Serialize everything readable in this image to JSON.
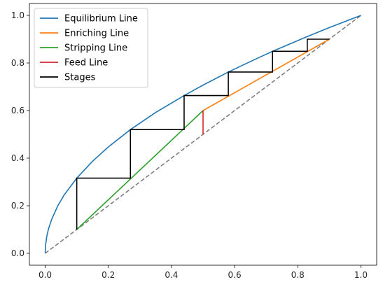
{
  "chart_data": {
    "type": "line",
    "xlim": [
      -0.05,
      1.05
    ],
    "ylim": [
      -0.05,
      1.05
    ],
    "xticks": [
      "0.0",
      "0.2",
      "0.4",
      "0.6",
      "0.8",
      "1.0"
    ],
    "yticks": [
      "0.0",
      "0.2",
      "0.4",
      "0.6",
      "0.8",
      "1.0"
    ],
    "grid": false,
    "legend_position": "top-left",
    "series": [
      {
        "name": "Equilibrium Line",
        "color": "#1f77b4",
        "x": [
          0,
          0.001,
          0.005,
          0.01,
          0.02,
          0.04,
          0.06,
          0.1,
          0.15,
          0.2,
          0.27,
          0.35,
          0.44,
          0.5,
          0.58,
          0.65,
          0.72,
          0.8,
          0.83,
          0.9,
          1.0
        ],
        "y": [
          0,
          0.032,
          0.071,
          0.1,
          0.141,
          0.2,
          0.245,
          0.316,
          0.387,
          0.447,
          0.52,
          0.592,
          0.663,
          0.707,
          0.762,
          0.806,
          0.849,
          0.894,
          0.911,
          0.949,
          1.0
        ]
      },
      {
        "name": "Enriching Line",
        "color": "#ff7f0e",
        "x": [
          0.5,
          0.9
        ],
        "y": [
          0.6,
          0.9
        ]
      },
      {
        "name": "Stripping Line",
        "color": "#2ca02c",
        "x": [
          0.1,
          0.5
        ],
        "y": [
          0.1,
          0.6
        ]
      },
      {
        "name": "Feed Line",
        "color": "#d62728",
        "x": [
          0.5,
          0.5
        ],
        "y": [
          0.5,
          0.6
        ]
      },
      {
        "name": "Stages",
        "color": "#000000",
        "x": [
          0.1,
          0.1,
          0.27,
          0.27,
          0.44,
          0.44,
          0.58,
          0.58,
          0.72,
          0.72,
          0.83,
          0.83,
          0.9
        ],
        "y": [
          0.1,
          0.316,
          0.316,
          0.52,
          0.52,
          0.663,
          0.663,
          0.762,
          0.762,
          0.849,
          0.849,
          0.9,
          0.9
        ]
      }
    ],
    "reference_line": {
      "color": "#808080",
      "style": "dashed",
      "x": [
        0,
        1
      ],
      "y": [
        0,
        1
      ]
    }
  }
}
